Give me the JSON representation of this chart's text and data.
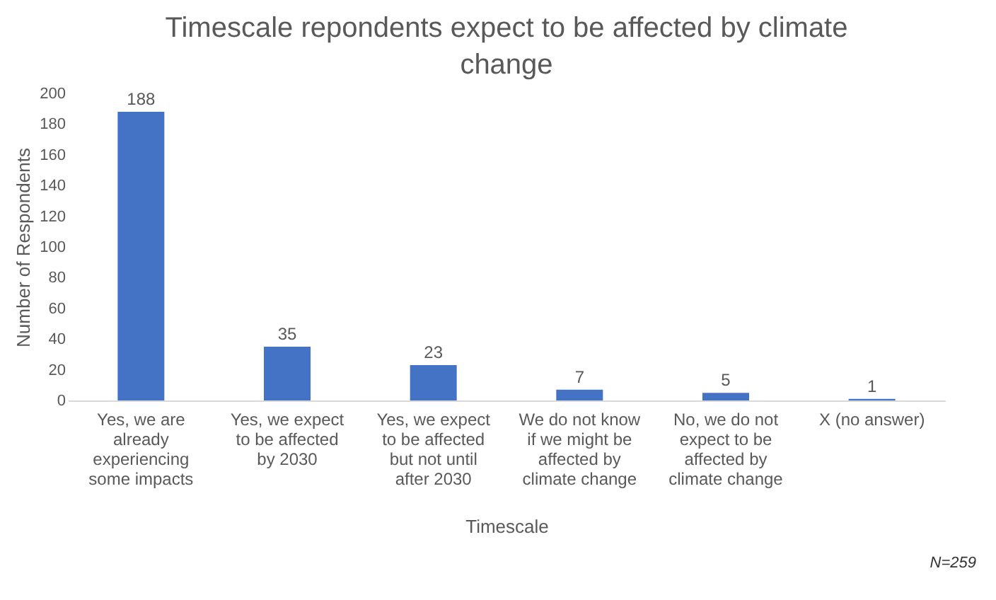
{
  "chart_data": {
    "type": "bar",
    "title": "Timescale repondents expect to be affected by climate change",
    "xlabel": "Timescale",
    "ylabel": "Number of Respondents",
    "categories": [
      "Yes, we are already experiencing some impacts",
      "Yes, we expect to be affected by 2030",
      "Yes, we expect to be affected but not until after 2030",
      "We do not know if we might be affected by climate change",
      "No, we do not expect to be affected by climate change",
      "X (no answer)"
    ],
    "values": [
      188,
      35,
      23,
      7,
      5,
      1
    ],
    "color": "#4472c4",
    "ylim": [
      0,
      200
    ],
    "yticks": [
      0,
      20,
      40,
      60,
      80,
      100,
      120,
      140,
      160,
      180,
      200
    ],
    "grid": false,
    "data_labels": true,
    "annotations": [
      "N=259"
    ]
  }
}
